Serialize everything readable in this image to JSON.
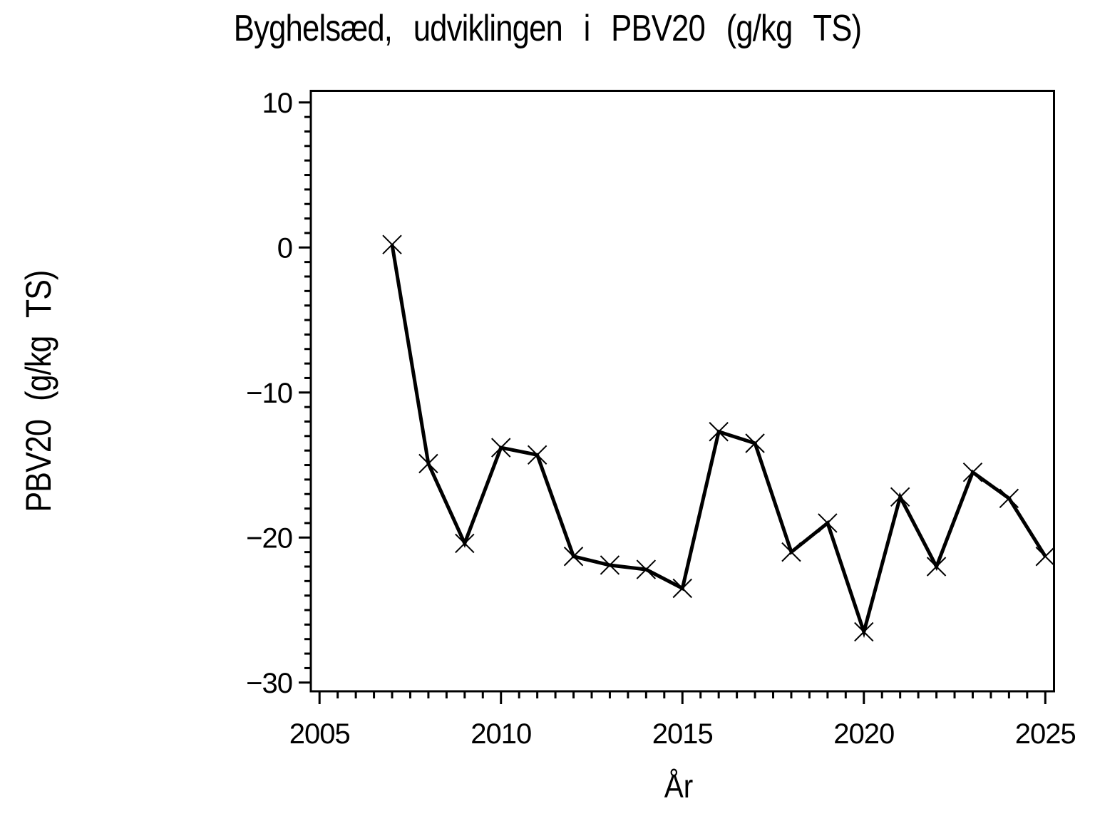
{
  "chart_data": {
    "type": "line",
    "title": "Byghelsæd, udviklingen i PBV20 (g/kg TS)",
    "xlabel": "År",
    "ylabel": "PBV20 (g/kg TS)",
    "x": [
      2007,
      2008,
      2009,
      2010,
      2011,
      2012,
      2013,
      2014,
      2015,
      2016,
      2017,
      2018,
      2019,
      2020,
      2021,
      2022,
      2023,
      2024,
      2025
    ],
    "values": [
      0.2,
      -14.9,
      -20.4,
      -13.8,
      -14.3,
      -21.3,
      -21.9,
      -22.2,
      -23.5,
      -12.7,
      -13.5,
      -21.0,
      -19.0,
      -26.5,
      -17.2,
      -22.0,
      -15.5,
      -17.3,
      -21.3
    ],
    "marker": "x",
    "line_color": "#000000",
    "background_color": "#ffffff",
    "grid": false,
    "legend": false,
    "xlim": [
      2004.76,
      2025.24
    ],
    "ylim": [
      -30.6,
      10.8
    ],
    "x_ticks": {
      "major": [
        {
          "value": 2005,
          "label": "2005"
        },
        {
          "value": 2010,
          "label": "2010"
        },
        {
          "value": 2015,
          "label": "2015"
        },
        {
          "value": 2020,
          "label": "2020"
        },
        {
          "value": 2025,
          "label": "2025"
        }
      ],
      "minor_step": 0.5,
      "minor_range": [
        2005,
        2025
      ]
    },
    "y_ticks": {
      "major": [
        {
          "value": 10,
          "label": "10"
        },
        {
          "value": 0,
          "label": "0"
        },
        {
          "value": -10,
          "label": "−10"
        },
        {
          "value": -20,
          "label": "−20"
        },
        {
          "value": -30,
          "label": "−30"
        }
      ],
      "minor_step": 1,
      "minor_range": [
        -30,
        10
      ]
    }
  }
}
